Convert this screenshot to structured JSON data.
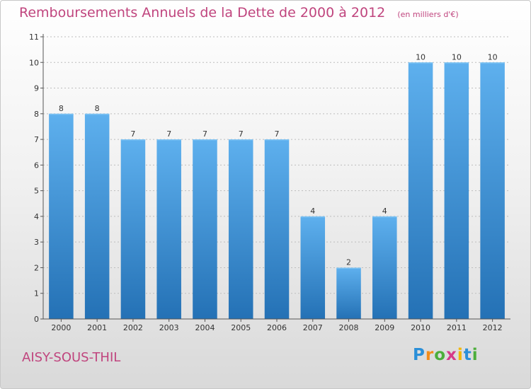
{
  "title": "Remboursements Annuels de la Dette de 2000 à 2012",
  "unit_note": "(en milliers d'€)",
  "city": "AISY-SOUS-THIL",
  "logo": {
    "letters": [
      "P",
      "r",
      "o",
      "x",
      "i",
      "t",
      "i"
    ],
    "colors": [
      "#2a8fd8",
      "#f28c1a",
      "#4cae3b",
      "#d63a8a",
      "#f2b705",
      "#2a8fd8",
      "#4cae3b"
    ]
  },
  "chart_data": {
    "type": "bar",
    "title": "Remboursements Annuels de la Dette de 2000 à 2012",
    "xlabel": "",
    "ylabel": "",
    "ylim": [
      0,
      11
    ],
    "yticks": [
      0,
      1,
      2,
      3,
      4,
      5,
      6,
      7,
      8,
      9,
      10,
      11
    ],
    "grid": true,
    "categories": [
      "2000",
      "2001",
      "2002",
      "2003",
      "2004",
      "2005",
      "2006",
      "2007",
      "2008",
      "2009",
      "2010",
      "2011",
      "2012"
    ],
    "values": [
      8,
      8,
      7,
      7,
      7,
      7,
      7,
      4,
      2,
      4,
      10,
      10,
      10
    ],
    "bar_color": "#3a93d8"
  }
}
